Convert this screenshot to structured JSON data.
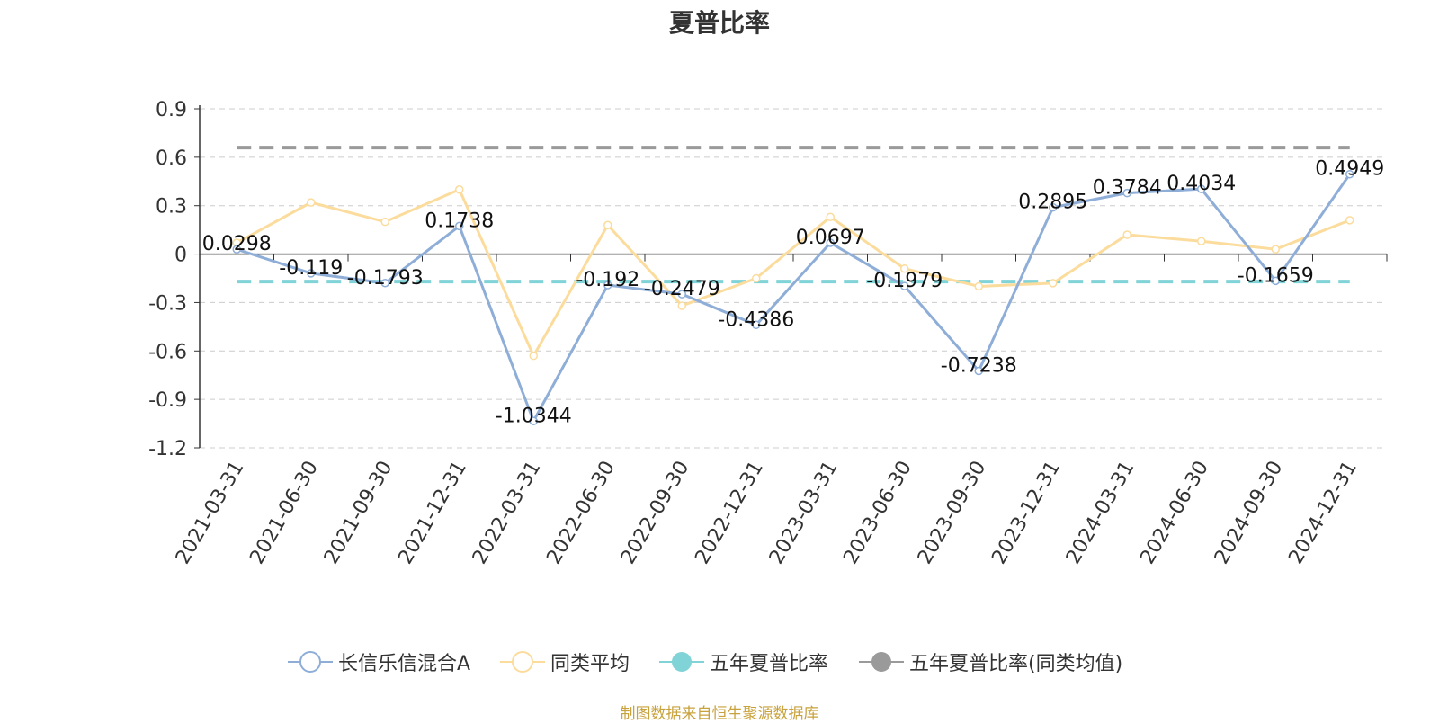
{
  "chart_data": {
    "type": "line",
    "title": "夏普比率",
    "categories": [
      "2021-03-31",
      "2021-06-30",
      "2021-09-30",
      "2021-12-31",
      "2022-03-31",
      "2022-06-30",
      "2022-09-30",
      "2022-12-31",
      "2023-03-31",
      "2023-06-30",
      "2023-09-30",
      "2023-12-31",
      "2024-03-31",
      "2024-06-30",
      "2024-09-30",
      "2024-12-31"
    ],
    "ylim": [
      -1.2,
      0.9
    ],
    "yticks": [
      "0.9",
      "0.6",
      "0.3",
      "0",
      "-0.3",
      "-0.6",
      "-0.9",
      "-1.2"
    ],
    "grid": true,
    "legend_position": "bottom",
    "series": [
      {
        "name": "长信乐信混合A",
        "color": "#8eaed8",
        "values": [
          0.0298,
          -0.119,
          -0.1793,
          0.1738,
          -1.0344,
          -0.192,
          -0.2479,
          -0.4386,
          0.0697,
          -0.1979,
          -0.7238,
          0.2895,
          0.3784,
          0.4034,
          -0.1659,
          0.4949
        ],
        "labels": [
          "0.0298",
          "-0.119",
          "-0.1793",
          "0.1738",
          "-1.0344",
          "-0.192",
          "-0.2479",
          "-0.4386",
          "0.0697",
          "-0.1979",
          "-0.7238",
          "0.2895",
          "0.3784",
          "0.4034",
          "-0.1659",
          "0.4949"
        ]
      },
      {
        "name": "同类平均",
        "color": "#fbdc9c",
        "values": [
          0.07,
          0.32,
          0.2,
          0.4,
          -0.63,
          0.18,
          -0.32,
          -0.15,
          0.23,
          -0.09,
          -0.2,
          -0.18,
          0.12,
          0.08,
          0.03,
          0.21
        ]
      },
      {
        "name": "五年夏普比率",
        "color": "#80d3d6",
        "value": -0.17
      },
      {
        "name": "五年夏普比率(同类均值)",
        "color": "#9a9a9a",
        "value": 0.66
      }
    ],
    "source": "制图数据来自恒生聚源数据库"
  }
}
